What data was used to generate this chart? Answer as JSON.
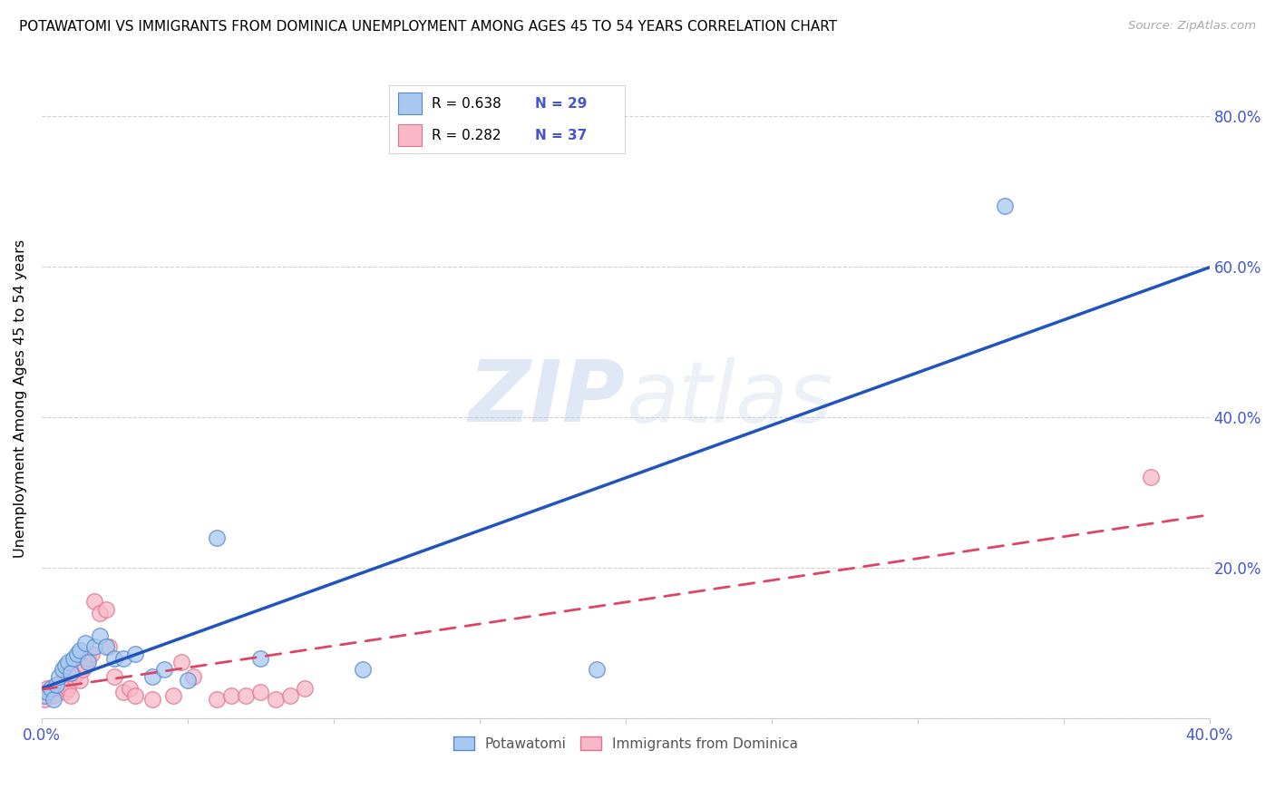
{
  "title": "POTAWATOMI VS IMMIGRANTS FROM DOMINICA UNEMPLOYMENT AMONG AGES 45 TO 54 YEARS CORRELATION CHART",
  "source": "Source: ZipAtlas.com",
  "ylabel": "Unemployment Among Ages 45 to 54 years",
  "xlim": [
    0.0,
    0.4
  ],
  "ylim": [
    0.0,
    0.85
  ],
  "xticks": [
    0.0,
    0.05,
    0.1,
    0.15,
    0.2,
    0.25,
    0.3,
    0.35,
    0.4
  ],
  "yticks": [
    0.0,
    0.2,
    0.4,
    0.6,
    0.8
  ],
  "xtick_labels_shown": [
    "0.0%",
    "",
    "",
    "",
    "",
    "",
    "",
    "",
    "40.0%"
  ],
  "ytick_labels": [
    "",
    "20.0%",
    "40.0%",
    "60.0%",
    "80.0%"
  ],
  "watermark_zip": "ZIP",
  "watermark_atlas": "atlas",
  "legend1_r": "R = 0.638",
  "legend1_n": "N = 29",
  "legend2_r": "R = 0.282",
  "legend2_n": "N = 37",
  "blue_scatter_face": "#a8c8f0",
  "blue_scatter_edge": "#5588cc",
  "pink_scatter_face": "#f8b8c8",
  "pink_scatter_edge": "#e07090",
  "blue_line_color": "#2255bb",
  "pink_line_color": "#dd4466",
  "grid_color": "#cccccc",
  "axis_label_color": "#4455cc",
  "potawatomi_x": [
    0.001,
    0.002,
    0.003,
    0.004,
    0.005,
    0.006,
    0.007,
    0.008,
    0.009,
    0.01,
    0.011,
    0.012,
    0.013,
    0.015,
    0.016,
    0.018,
    0.02,
    0.022,
    0.025,
    0.028,
    0.032,
    0.038,
    0.042,
    0.05,
    0.06,
    0.075,
    0.11,
    0.19,
    0.33
  ],
  "potawatomi_y": [
    0.03,
    0.035,
    0.04,
    0.025,
    0.045,
    0.055,
    0.065,
    0.07,
    0.075,
    0.06,
    0.08,
    0.085,
    0.09,
    0.1,
    0.075,
    0.095,
    0.11,
    0.095,
    0.08,
    0.08,
    0.085,
    0.055,
    0.065,
    0.05,
    0.24,
    0.08,
    0.065,
    0.065,
    0.68
  ],
  "dominica_x": [
    0.001,
    0.002,
    0.003,
    0.004,
    0.005,
    0.006,
    0.007,
    0.008,
    0.009,
    0.01,
    0.011,
    0.012,
    0.013,
    0.014,
    0.015,
    0.016,
    0.017,
    0.018,
    0.02,
    0.022,
    0.023,
    0.025,
    0.028,
    0.03,
    0.032,
    0.038,
    0.045,
    0.048,
    0.052,
    0.06,
    0.065,
    0.07,
    0.075,
    0.08,
    0.085,
    0.09,
    0.38
  ],
  "dominica_y": [
    0.025,
    0.04,
    0.035,
    0.03,
    0.045,
    0.04,
    0.05,
    0.035,
    0.04,
    0.03,
    0.055,
    0.06,
    0.05,
    0.065,
    0.07,
    0.08,
    0.085,
    0.155,
    0.14,
    0.145,
    0.095,
    0.055,
    0.035,
    0.04,
    0.03,
    0.025,
    0.03,
    0.075,
    0.055,
    0.025,
    0.03,
    0.03,
    0.035,
    0.025,
    0.03,
    0.04,
    0.32
  ]
}
